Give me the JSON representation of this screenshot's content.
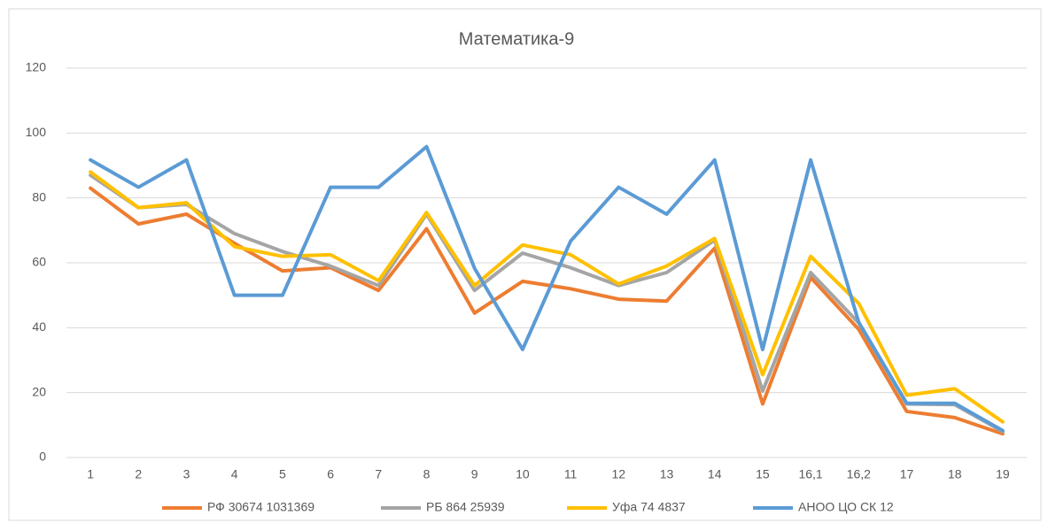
{
  "chart_data": {
    "type": "line",
    "title": "Математика-9",
    "categories": [
      "1",
      "2",
      "3",
      "4",
      "5",
      "6",
      "7",
      "8",
      "9",
      "10",
      "11",
      "12",
      "13",
      "14",
      "15",
      "16,1",
      "16,2",
      "17",
      "18",
      "19"
    ],
    "series": [
      {
        "name": "РФ 30674 1031369",
        "color": "#ed7d31",
        "values": [
          83,
          72,
          75,
          66,
          57.5,
          58.5,
          51.5,
          70.5,
          44.5,
          54.3,
          52,
          48.8,
          48.2,
          64.5,
          16.5,
          55.5,
          39.5,
          14.2,
          12.3,
          7.3
        ]
      },
      {
        "name": "РБ 864 25939",
        "color": "#a5a5a5",
        "values": [
          87,
          77,
          78,
          69,
          63.5,
          59,
          53,
          75,
          51.5,
          63,
          58.5,
          53,
          57,
          67,
          20.5,
          57,
          41.5,
          16.5,
          16.3,
          8
        ]
      },
      {
        "name": "Уфа 74 4837",
        "color": "#ffc000",
        "values": [
          88,
          77,
          78.5,
          65,
          62,
          62.5,
          54.5,
          75.5,
          53,
          65.5,
          62.5,
          53.5,
          59,
          67.5,
          25.5,
          62,
          47.5,
          19.2,
          21.2,
          11
        ]
      },
      {
        "name": "АНОО ЦО СК 12",
        "color": "#5b9bd5",
        "values": [
          91.7,
          83.3,
          91.7,
          50,
          50,
          83.3,
          83.3,
          95.8,
          58.3,
          33.3,
          66.7,
          83.3,
          75,
          91.7,
          33.3,
          91.7,
          41.7,
          16.7,
          16.7,
          8.3
        ]
      }
    ],
    "ylim": [
      0,
      120
    ],
    "yticks": [
      0,
      20,
      40,
      60,
      80,
      100,
      120
    ],
    "grid": true,
    "legend": "bottom"
  }
}
